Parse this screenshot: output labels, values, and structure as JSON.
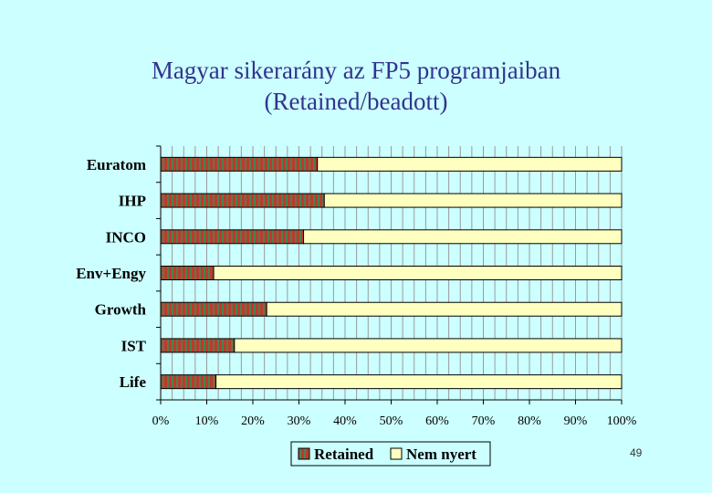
{
  "slide": {
    "title_line1": "Magyar sikerarány az FP5 programjaiban",
    "title_line2": "(Retained/beadott)",
    "page_number": "49"
  },
  "colors": {
    "background": "#ccffff",
    "retained_red": "#c0392b",
    "retained_green": "#4f7f4f",
    "nem_nyert": "#ffffc0",
    "grid": "#9a9a9a"
  },
  "chart_data": {
    "type": "bar",
    "orientation": "horizontal",
    "stacked": true,
    "percent_stacked": true,
    "categories": [
      "Euratom",
      "IHP",
      "INCO",
      "Env+Engy",
      "Growth",
      "IST",
      "Life"
    ],
    "series": [
      {
        "name": "Retained",
        "values": [
          34,
          35.5,
          31,
          11.5,
          23,
          16,
          12
        ],
        "pattern": "striped"
      },
      {
        "name": "Nem nyert",
        "values": [
          66,
          64.5,
          69,
          88.5,
          77,
          84,
          88
        ]
      }
    ],
    "x_ticks": [
      "0%",
      "10%",
      "20%",
      "30%",
      "40%",
      "50%",
      "60%",
      "70%",
      "80%",
      "90%",
      "100%"
    ],
    "xlim": [
      0,
      100
    ],
    "grid": true,
    "legend": "bottom-center"
  }
}
